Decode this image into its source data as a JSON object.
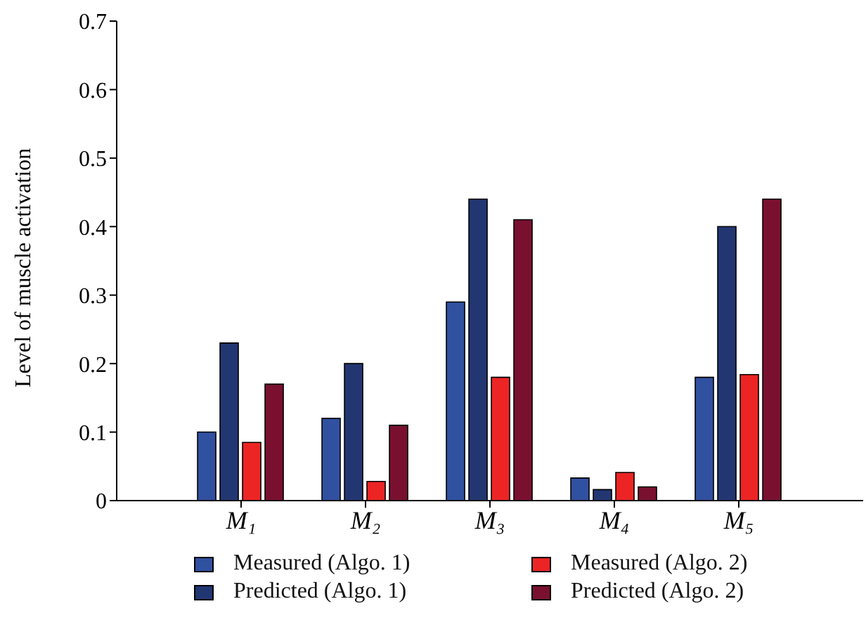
{
  "chart_data": {
    "type": "bar",
    "ylabel": "Level of muscle activation",
    "categories": [
      "M₁",
      "M₂",
      "M₃",
      "M₄",
      "M₅"
    ],
    "series": [
      {
        "name": "Measured (Algo. 1)",
        "color": "#3050a0",
        "values": [
          0.1,
          0.12,
          0.29,
          0.033,
          0.18
        ]
      },
      {
        "name": "Predicted (Algo. 1)",
        "color": "#223672",
        "values": [
          0.23,
          0.2,
          0.44,
          0.016,
          0.4
        ]
      },
      {
        "name": "Measured (Algo. 2)",
        "color": "#ec2424",
        "values": [
          0.085,
          0.028,
          0.18,
          0.041,
          0.184
        ]
      },
      {
        "name": "Predicted (Algo. 2)",
        "color": "#7a1030",
        "values": [
          0.17,
          0.11,
          0.41,
          0.02,
          0.44
        ]
      }
    ],
    "ylim": [
      0,
      0.7
    ],
    "yticks": [
      0,
      0.1,
      0.2,
      0.3,
      0.4,
      0.5,
      0.6,
      0.7
    ],
    "grid": false,
    "legend": "bottom"
  }
}
